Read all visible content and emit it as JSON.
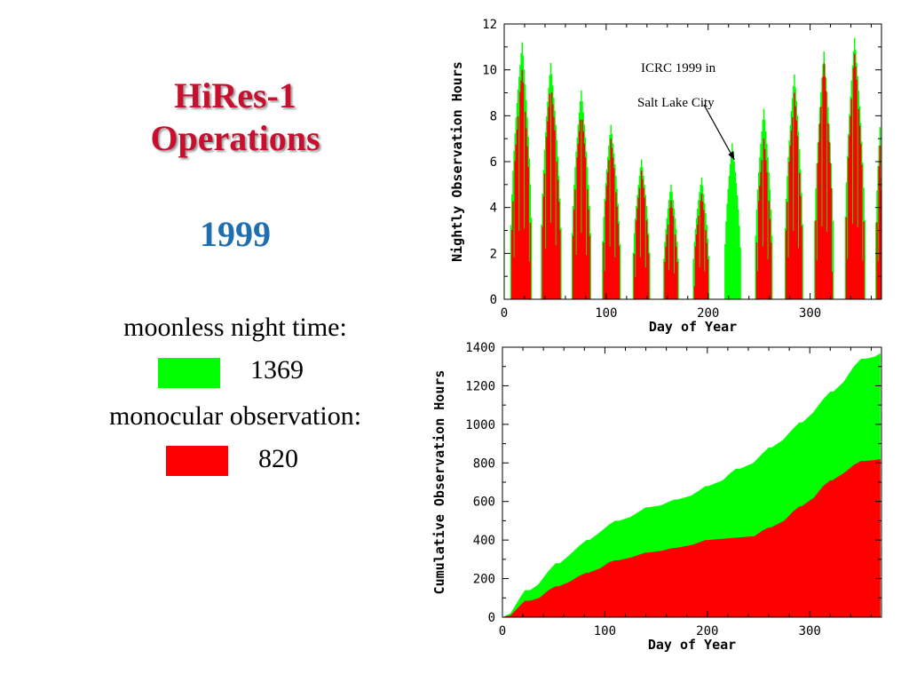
{
  "slide": {
    "title_line1": "HiRes-1",
    "title_line2": "Operations",
    "year": "1999",
    "legend": {
      "moonless_label": "moonless night time:",
      "moonless_value": "1369",
      "moonless_color": "#00ff00",
      "monocular_label": "monocular observation:",
      "monocular_value": "820",
      "monocular_color": "#ff0000"
    }
  },
  "chart_data": [
    {
      "type": "bar",
      "xlabel": "Day of Year",
      "ylabel": "Nightly Observation Hours",
      "xlim": [
        0,
        370
      ],
      "ylim": [
        0,
        12
      ],
      "xticks": [
        0,
        100,
        200,
        300
      ],
      "yticks": [
        0,
        2,
        4,
        6,
        8,
        10,
        12
      ],
      "grid": false,
      "annotation": {
        "line1": "ICRC 1999 in",
        "line2": "Salt Lake City",
        "points_to": [
          224,
          6
        ]
      },
      "series": [
        {
          "color": "#00ff00",
          "peaks": [
            {
              "center": 17,
              "start": 5,
              "end": 27,
              "peak": 11.2
            },
            {
              "center": 45,
              "start": 35,
              "end": 56,
              "peak": 10.3
            },
            {
              "center": 75,
              "start": 65,
              "end": 85,
              "peak": 9.1
            },
            {
              "center": 104,
              "start": 95,
              "end": 114,
              "peak": 7.6
            },
            {
              "center": 134,
              "start": 125,
              "end": 143,
              "peak": 6.1
            },
            {
              "center": 163,
              "start": 155,
              "end": 171,
              "peak": 5.0
            },
            {
              "center": 193,
              "start": 184,
              "end": 201,
              "peak": 5.3
            },
            {
              "center": 223,
              "start": 215,
              "end": 232,
              "peak": 6.8
            },
            {
              "center": 254,
              "start": 245,
              "end": 263,
              "peak": 8.3
            },
            {
              "center": 284,
              "start": 274,
              "end": 293,
              "peak": 9.8
            },
            {
              "center": 313,
              "start": 303,
              "end": 323,
              "peak": 10.8
            },
            {
              "center": 343,
              "start": 333,
              "end": 354,
              "peak": 11.4
            },
            {
              "center": 368,
              "start": 363,
              "end": 370,
              "peak": 7.5
            }
          ]
        },
        {
          "color": "#ff0000",
          "peaks": [
            {
              "center": 17,
              "start": 6,
              "end": 26,
              "peak": 10.0
            },
            {
              "center": 45,
              "start": 36,
              "end": 55,
              "peak": 9.5
            },
            {
              "center": 75,
              "start": 66,
              "end": 84,
              "peak": 8.3
            },
            {
              "center": 104,
              "start": 96,
              "end": 113,
              "peak": 7.0
            },
            {
              "center": 134,
              "start": 126,
              "end": 142,
              "peak": 5.6
            },
            {
              "center": 163,
              "start": 156,
              "end": 170,
              "peak": 4.3
            },
            {
              "center": 193,
              "start": 185,
              "end": 200,
              "peak": 4.6
            },
            {
              "center": 254,
              "start": 246,
              "end": 262,
              "peak": 7.0
            },
            {
              "center": 284,
              "start": 275,
              "end": 292,
              "peak": 9.0
            },
            {
              "center": 313,
              "start": 304,
              "end": 322,
              "peak": 10.3
            },
            {
              "center": 343,
              "start": 334,
              "end": 353,
              "peak": 10.7
            },
            {
              "center": 368,
              "start": 364,
              "end": 370,
              "peak": 6.7
            }
          ]
        }
      ]
    },
    {
      "type": "area",
      "xlabel": "Day of Year",
      "ylabel": "Cumulative Observation Hours",
      "xlim": [
        0,
        370
      ],
      "ylim": [
        0,
        1400
      ],
      "xticks": [
        0,
        100,
        200,
        300
      ],
      "yticks": [
        0,
        200,
        400,
        600,
        800,
        1000,
        1200,
        1400
      ],
      "grid": false,
      "series": [
        {
          "name": "moonless night time",
          "color": "#00ff00",
          "x": [
            0,
            8,
            17,
            22,
            27,
            35,
            45,
            52,
            56,
            65,
            75,
            82,
            85,
            95,
            104,
            110,
            114,
            125,
            134,
            140,
            143,
            155,
            163,
            168,
            171,
            184,
            193,
            198,
            201,
            215,
            223,
            228,
            232,
            245,
            254,
            260,
            263,
            274,
            284,
            290,
            293,
            303,
            313,
            320,
            323,
            333,
            343,
            350,
            354,
            363,
            369
          ],
          "y": [
            0,
            20,
            100,
            140,
            140,
            170,
            240,
            280,
            280,
            320,
            370,
            400,
            400,
            440,
            480,
            500,
            500,
            520,
            550,
            570,
            570,
            580,
            600,
            610,
            610,
            630,
            660,
            680,
            680,
            710,
            750,
            770,
            770,
            800,
            850,
            880,
            880,
            920,
            980,
            1010,
            1010,
            1060,
            1130,
            1170,
            1170,
            1220,
            1300,
            1340,
            1340,
            1350,
            1369
          ]
        },
        {
          "name": "monocular observation",
          "color": "#ff0000",
          "x": [
            0,
            8,
            17,
            22,
            27,
            36,
            45,
            52,
            55,
            66,
            75,
            82,
            84,
            96,
            104,
            110,
            113,
            126,
            134,
            140,
            142,
            156,
            163,
            168,
            170,
            185,
            193,
            198,
            200,
            246,
            254,
            260,
            262,
            275,
            284,
            290,
            292,
            304,
            313,
            320,
            322,
            334,
            343,
            350,
            353,
            364,
            369
          ],
          "y": [
            0,
            10,
            60,
            85,
            85,
            100,
            140,
            160,
            160,
            185,
            215,
            230,
            230,
            255,
            285,
            295,
            295,
            310,
            325,
            335,
            335,
            345,
            355,
            360,
            360,
            375,
            390,
            400,
            400,
            420,
            450,
            465,
            465,
            500,
            550,
            575,
            575,
            620,
            680,
            710,
            710,
            750,
            790,
            810,
            810,
            815,
            820
          ]
        }
      ]
    }
  ]
}
